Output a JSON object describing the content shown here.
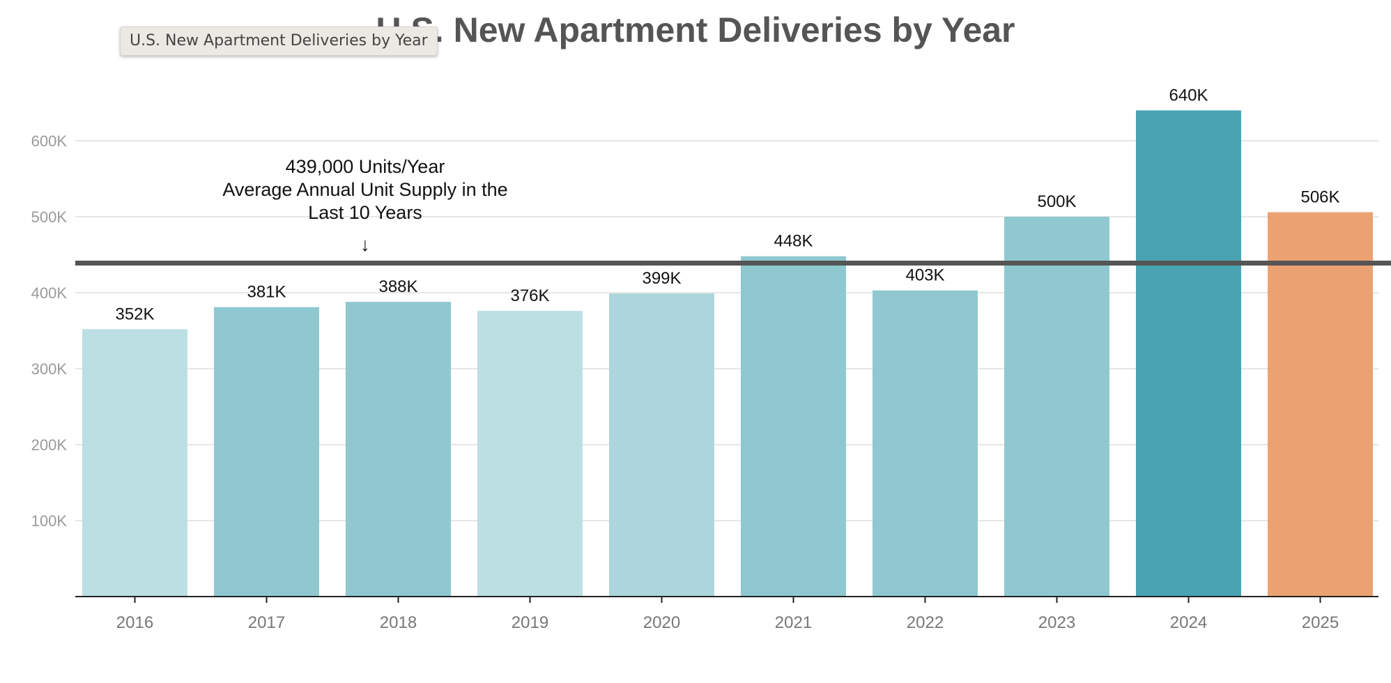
{
  "tooltip": "U.S. New Apartment Deliveries by Year",
  "chart_data": {
    "type": "bar",
    "title": "U.S. New Apartment Deliveries by Year",
    "xlabel": "",
    "ylabel": "",
    "categories": [
      "2016",
      "2017",
      "2018",
      "2019",
      "2020",
      "2021",
      "2022",
      "2023",
      "2024",
      "2025"
    ],
    "values": [
      352000,
      381000,
      388000,
      376000,
      399000,
      448000,
      403000,
      500000,
      640000,
      506000
    ],
    "data_labels": [
      "352K",
      "381K",
      "388K",
      "376K",
      "399K",
      "448K",
      "403K",
      "500K",
      "640K",
      "506K"
    ],
    "bar_colors": [
      "#bbdfe3",
      "#8fc8d0",
      "#8fc8d0",
      "#bbdfe3",
      "#acd6dc",
      "#8fc8d0",
      "#8fc8d0",
      "#8fc8d0",
      "#4aa3b3",
      "#eba272"
    ],
    "ylim": [
      0,
      700000
    ],
    "y_ticks": [
      100000,
      200000,
      300000,
      400000,
      500000,
      600000
    ],
    "y_tick_labels": [
      "100K",
      "200K",
      "300K",
      "400K",
      "500K",
      "600K"
    ],
    "grid": true,
    "reference_line": {
      "value": 439000,
      "color": "#555555",
      "annotation": [
        "439,000 Units/Year",
        "Average Annual Unit Supply in the",
        "Last 10 Years"
      ],
      "arrow": "↓"
    }
  }
}
